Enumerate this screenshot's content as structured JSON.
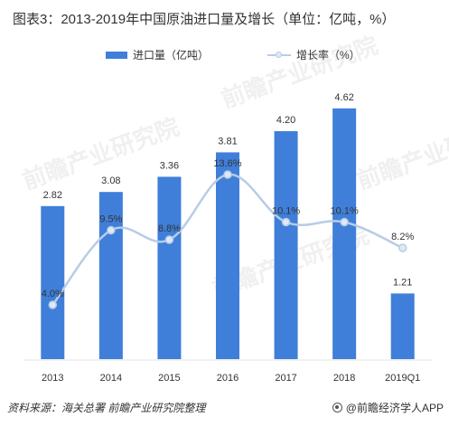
{
  "title": "图表3：2013-2019年中国原油进口量及增长（单位：亿吨，%）",
  "watermark": "前瞻产业研究院",
  "source": "资料来源：海关总署  前瞻产业研究院整理",
  "brand": "@前瞻经济学人APP",
  "colors": {
    "bar": "#3f7fd9",
    "line": "#b8cce6",
    "point": "#dfe9f6",
    "text": "#333333"
  },
  "chart_data": {
    "type": "bar",
    "categories": [
      "2013",
      "2014",
      "2015",
      "2016",
      "2017",
      "2018",
      "2019Q1"
    ],
    "legend_position": "top",
    "grid": false,
    "series": [
      {
        "name": "进口量（亿吨）",
        "type": "bar",
        "axis": "left",
        "values": [
          2.82,
          3.08,
          3.36,
          3.81,
          4.2,
          4.62,
          1.21
        ],
        "labels": [
          "2.82",
          "3.08",
          "3.36",
          "3.81",
          "4.20",
          "4.62",
          "1.21"
        ]
      },
      {
        "name": "增长率（%）",
        "type": "line",
        "axis": "right",
        "smooth": true,
        "values": [
          4.0,
          9.5,
          8.8,
          13.6,
          10.1,
          10.1,
          8.2
        ],
        "labels": [
          "4.0%",
          "9.5%",
          "8.8%",
          "13.6%",
          "10.1%",
          "10.1%",
          "8.2%"
        ]
      }
    ],
    "ylim_left": [
      0,
      5
    ],
    "ylim_right": [
      0,
      20
    ]
  }
}
